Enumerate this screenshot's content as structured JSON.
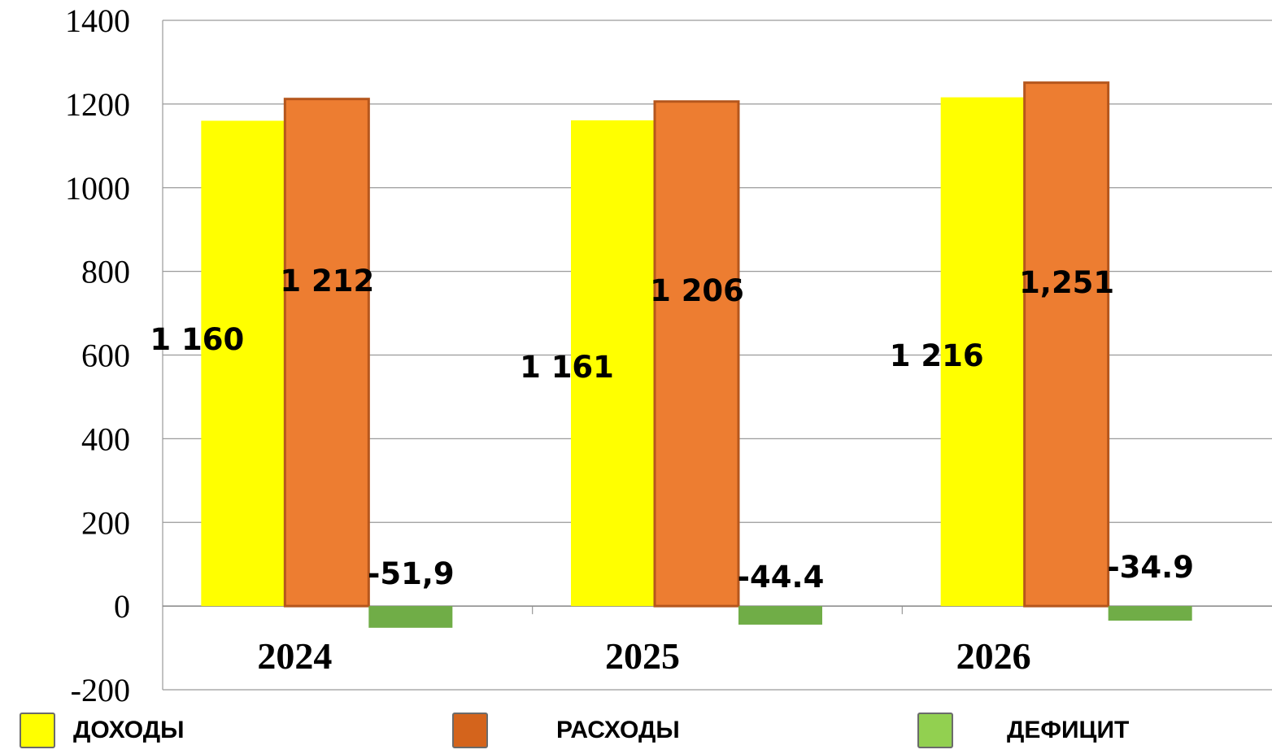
{
  "chart_data": {
    "type": "bar",
    "categories": [
      "2024",
      "2025",
      "2026"
    ],
    "series": [
      {
        "name": "ДОХОДЫ",
        "values": [
          1160,
          1161,
          1216
        ],
        "labels": [
          "1 160",
          "1 161",
          "1 216"
        ],
        "color": "#FFFF00"
      },
      {
        "name": "РАСХОДЫ",
        "values": [
          1212,
          1206,
          1251
        ],
        "labels": [
          "1 212",
          "1 206",
          "1,251"
        ],
        "color": "#ED7D31"
      },
      {
        "name": "ДЕФИЦИТ",
        "values": [
          -51.9,
          -44.4,
          -34.9
        ],
        "labels": [
          "-51,9",
          "-44.4",
          "-34.9"
        ],
        "color": "#70AD47"
      }
    ],
    "y_ticks": [
      "1400",
      "1200",
      "1000",
      "800",
      "600",
      "400",
      "200",
      "0",
      "-200"
    ],
    "ylim": [
      -200,
      1400
    ],
    "grid": true,
    "legend_position": "bottom"
  },
  "legend": {
    "items": [
      {
        "label": "ДОХОДЫ",
        "color": "#FFFF00"
      },
      {
        "label": "РАСХОДЫ",
        "color": "#D4641C"
      },
      {
        "label": "ДЕФИЦИТ",
        "color": "#92D050"
      }
    ]
  }
}
